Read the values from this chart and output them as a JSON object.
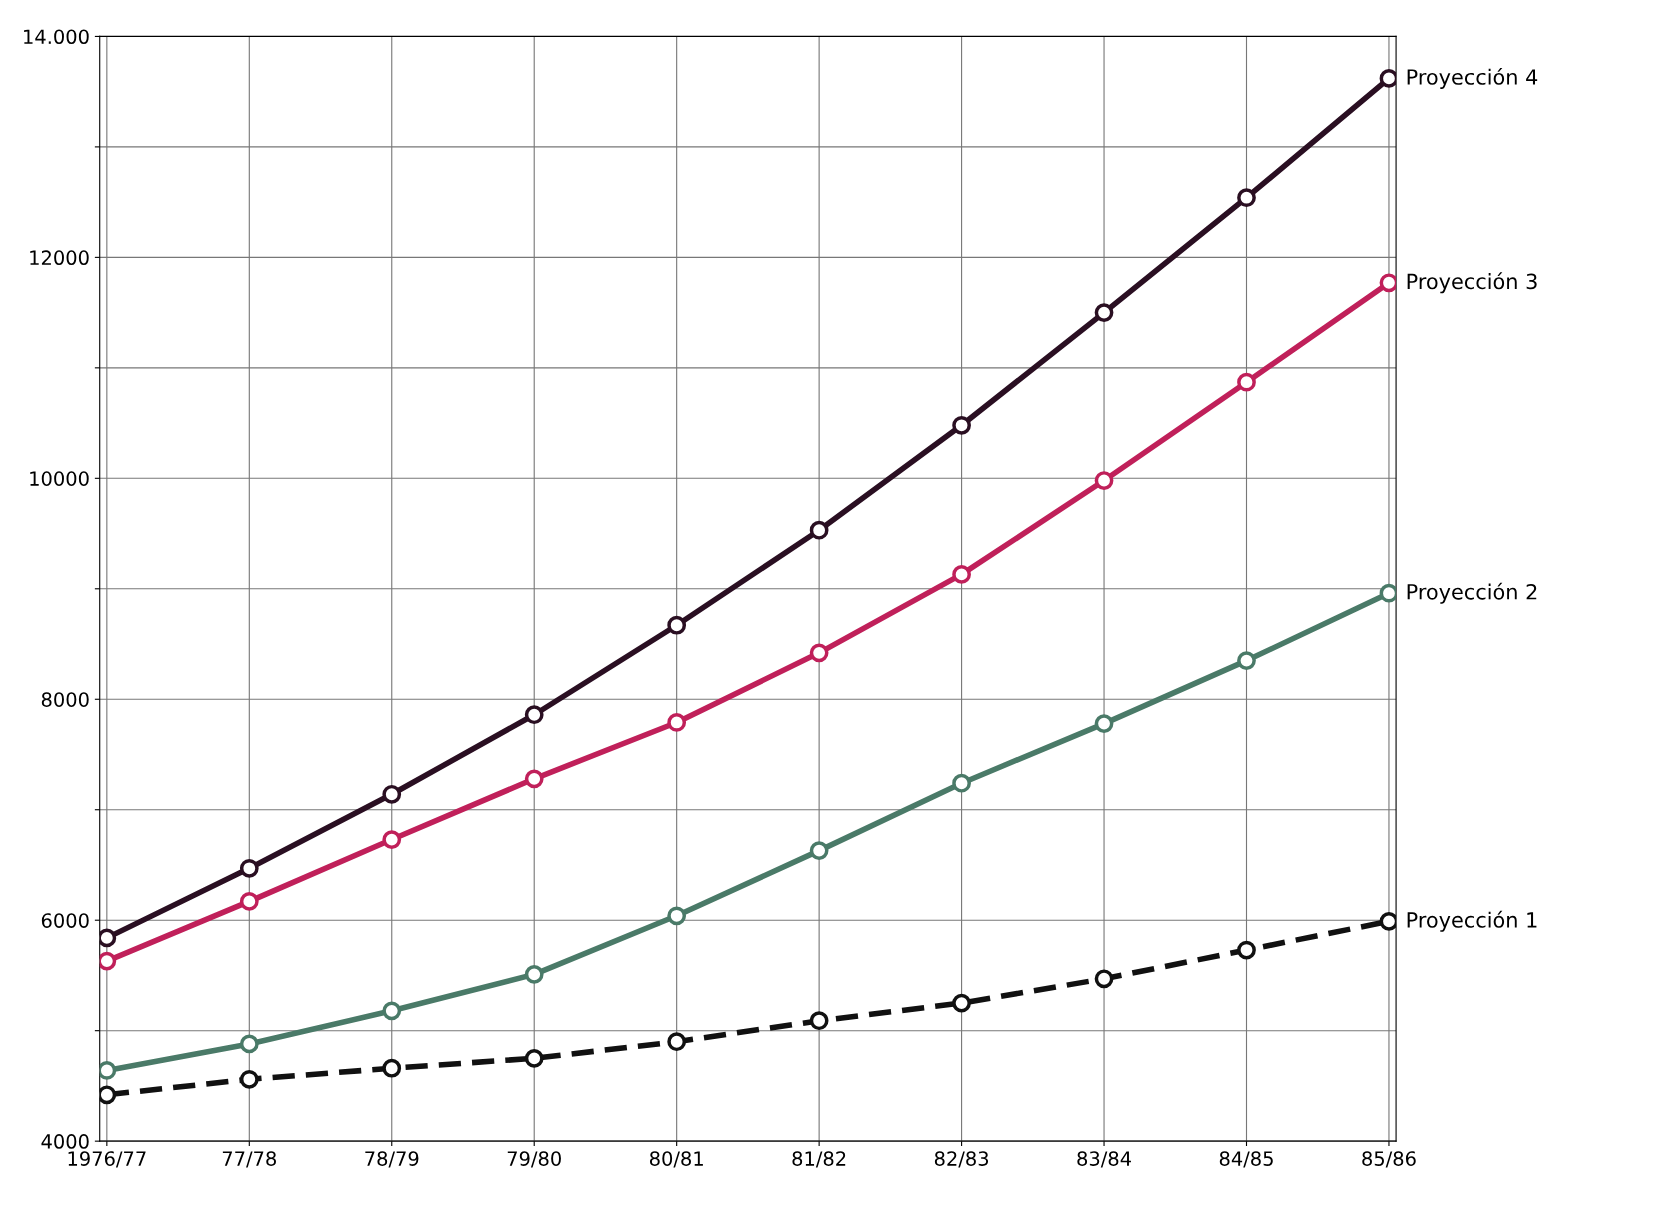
{
  "chart_data": {
    "type": "line",
    "categories": [
      "1976/77",
      "77/78",
      "78/79",
      "79/80",
      "80/81",
      "81/82",
      "82/83",
      "83/84",
      "84/85",
      "85/86"
    ],
    "series": [
      {
        "name": "Proyección 4",
        "color": "#2a0f22",
        "line_style": "solid",
        "values": [
          5840,
          6470,
          7140,
          7860,
          8670,
          9530,
          10480,
          11500,
          12540,
          13620
        ]
      },
      {
        "name": "Proyección 3",
        "color": "#c0205a",
        "line_style": "solid",
        "values": [
          5630,
          6170,
          6730,
          7280,
          7790,
          8420,
          9130,
          9980,
          10870,
          11770
        ]
      },
      {
        "name": "Proyección 2",
        "color": "#4a7a68",
        "line_style": "solid",
        "values": [
          4640,
          4880,
          5180,
          5510,
          6040,
          6630,
          7240,
          7780,
          8350,
          8960
        ]
      },
      {
        "name": "Proyección 1",
        "color": "#111111",
        "line_style": "dashed",
        "values": [
          4420,
          4560,
          4660,
          4750,
          4900,
          5090,
          5250,
          5470,
          5730,
          5990
        ]
      }
    ],
    "ylim": [
      4000,
      14000
    ],
    "yticks": [
      4000,
      {
        "value": 5000,
        "label": null
      },
      6000,
      {
        "value": 7000,
        "label": null
      },
      8000,
      {
        "value": 9000,
        "label": null
      },
      10000,
      {
        "value": 11000,
        "label": null
      },
      12000,
      {
        "value": 13000,
        "label": null
      },
      {
        "value": 14000,
        "label": "14.000"
      }
    ],
    "grid": true,
    "marker": "circle",
    "legend": false
  }
}
